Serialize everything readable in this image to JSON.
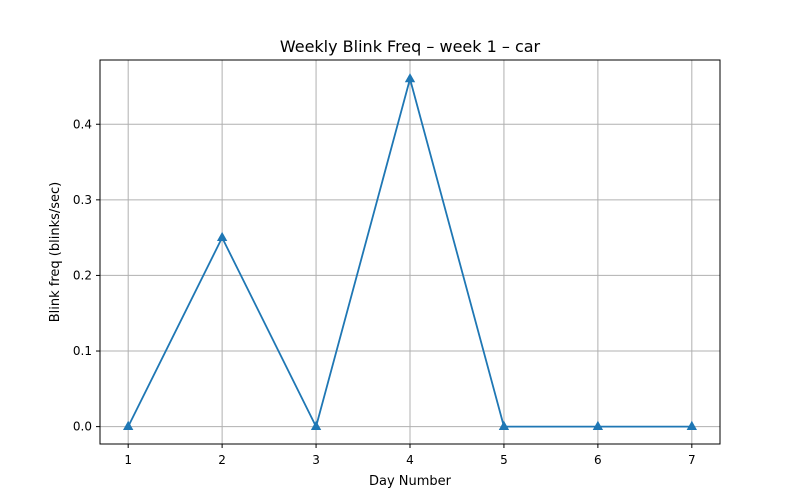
{
  "chart_data": {
    "type": "line",
    "title": "Weekly Blink Freq – week 1 – car",
    "xlabel": "Day Number",
    "ylabel": "Blink freq (blinks/sec)",
    "x": [
      1,
      2,
      3,
      4,
      5,
      6,
      7
    ],
    "x_tick_labels": [
      "1",
      "2",
      "3",
      "4",
      "5",
      "6",
      "7"
    ],
    "y_ticks": [
      0.0,
      0.1,
      0.2,
      0.3,
      0.4
    ],
    "y_tick_labels": [
      "0.0",
      "0.1",
      "0.2",
      "0.3",
      "0.4"
    ],
    "xlim": [
      0.7,
      7.3
    ],
    "ylim": [
      -0.023,
      0.485
    ],
    "grid": true,
    "series": [
      {
        "values": [
          0.0,
          0.25,
          0.0,
          0.46,
          0.0,
          0.0,
          0.0
        ],
        "color": "#1f77b4",
        "marker": "triangle-up"
      }
    ],
    "colors": {
      "grid": "#b0b0b0",
      "axes": "#000000"
    }
  }
}
